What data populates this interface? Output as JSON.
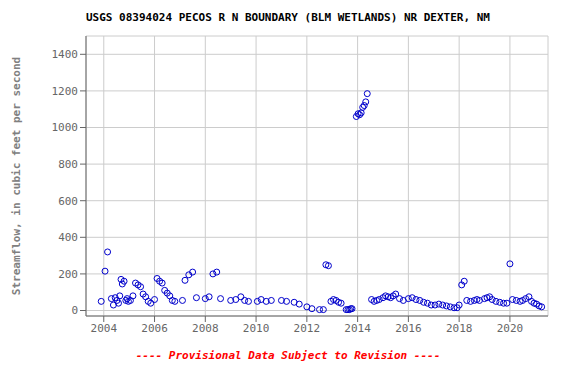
{
  "chart_data": {
    "type": "scatter",
    "title": "USGS 08394024 PECOS R N BOUNDARY (BLM WETLANDS) NR DEXTER, NM",
    "ylabel": "Streamflow, in cubic feet per second",
    "annotations": [
      {
        "text": "---- Provisional Data Subject to Revision ----",
        "color": "red"
      }
    ],
    "xlim": [
      2003.3,
      2021.5
    ],
    "ylim": [
      -30,
      1500
    ],
    "xticks": [
      2004,
      2006,
      2008,
      2010,
      2012,
      2014,
      2016,
      2018,
      2020
    ],
    "yticks": [
      0,
      200,
      400,
      600,
      800,
      1000,
      1200,
      1400
    ],
    "grid": true,
    "color": "#0000cc",
    "marker": "open_circle",
    "x": [
      2003.9,
      2004.05,
      2004.15,
      2004.3,
      2004.38,
      2004.45,
      2004.52,
      2004.58,
      2004.63,
      2004.68,
      2004.73,
      2004.8,
      2004.87,
      2004.92,
      2004.97,
      2005.05,
      2005.15,
      2005.25,
      2005.35,
      2005.45,
      2005.55,
      2005.65,
      2005.75,
      2005.85,
      2006.0,
      2006.1,
      2006.2,
      2006.3,
      2006.4,
      2006.5,
      2006.6,
      2006.7,
      2006.8,
      2007.1,
      2007.2,
      2007.35,
      2007.5,
      2007.65,
      2008.0,
      2008.15,
      2008.3,
      2008.45,
      2008.6,
      2009.0,
      2009.2,
      2009.4,
      2009.55,
      2009.7,
      2010.05,
      2010.2,
      2010.4,
      2010.6,
      2011.0,
      2011.2,
      2011.5,
      2011.7,
      2012.0,
      2012.2,
      2012.5,
      2012.65,
      2012.75,
      2012.85,
      2012.95,
      2013.05,
      2013.15,
      2013.25,
      2013.35,
      2013.55,
      2013.62,
      2013.68,
      2013.73,
      2013.78,
      2013.95,
      2014.02,
      2014.08,
      2014.14,
      2014.2,
      2014.26,
      2014.32,
      2014.38,
      2014.55,
      2014.65,
      2014.75,
      2014.85,
      2015.0,
      2015.1,
      2015.2,
      2015.3,
      2015.4,
      2015.5,
      2015.65,
      2015.8,
      2016.0,
      2016.15,
      2016.3,
      2016.45,
      2016.6,
      2016.75,
      2016.9,
      2017.05,
      2017.2,
      2017.35,
      2017.5,
      2017.65,
      2017.8,
      2017.92,
      2018.0,
      2018.1,
      2018.2,
      2018.3,
      2018.45,
      2018.6,
      2018.7,
      2018.8,
      2019.0,
      2019.1,
      2019.2,
      2019.3,
      2019.45,
      2019.6,
      2019.75,
      2019.88,
      2020.0,
      2020.1,
      2020.25,
      2020.4,
      2020.5,
      2020.62,
      2020.75,
      2020.85,
      2020.95,
      2021.05,
      2021.15,
      2021.25
    ],
    "values": [
      50,
      215,
      320,
      65,
      30,
      70,
      55,
      40,
      80,
      170,
      145,
      160,
      55,
      65,
      50,
      55,
      80,
      150,
      140,
      130,
      90,
      75,
      50,
      40,
      60,
      175,
      160,
      150,
      110,
      95,
      80,
      55,
      50,
      55,
      165,
      195,
      210,
      70,
      65,
      75,
      200,
      210,
      65,
      55,
      60,
      75,
      55,
      50,
      50,
      60,
      50,
      55,
      55,
      50,
      45,
      35,
      20,
      10,
      5,
      5,
      250,
      245,
      50,
      60,
      55,
      45,
      40,
      5,
      5,
      5,
      10,
      10,
      1060,
      1075,
      1070,
      1080,
      1110,
      1120,
      1140,
      1185,
      60,
      50,
      55,
      60,
      70,
      80,
      75,
      70,
      80,
      90,
      65,
      55,
      65,
      70,
      60,
      55,
      45,
      40,
      30,
      30,
      35,
      30,
      25,
      20,
      15,
      15,
      30,
      140,
      160,
      55,
      50,
      55,
      60,
      55,
      65,
      70,
      75,
      60,
      50,
      45,
      40,
      40,
      255,
      60,
      55,
      50,
      55,
      65,
      75,
      50,
      40,
      35,
      25,
      20
    ]
  }
}
